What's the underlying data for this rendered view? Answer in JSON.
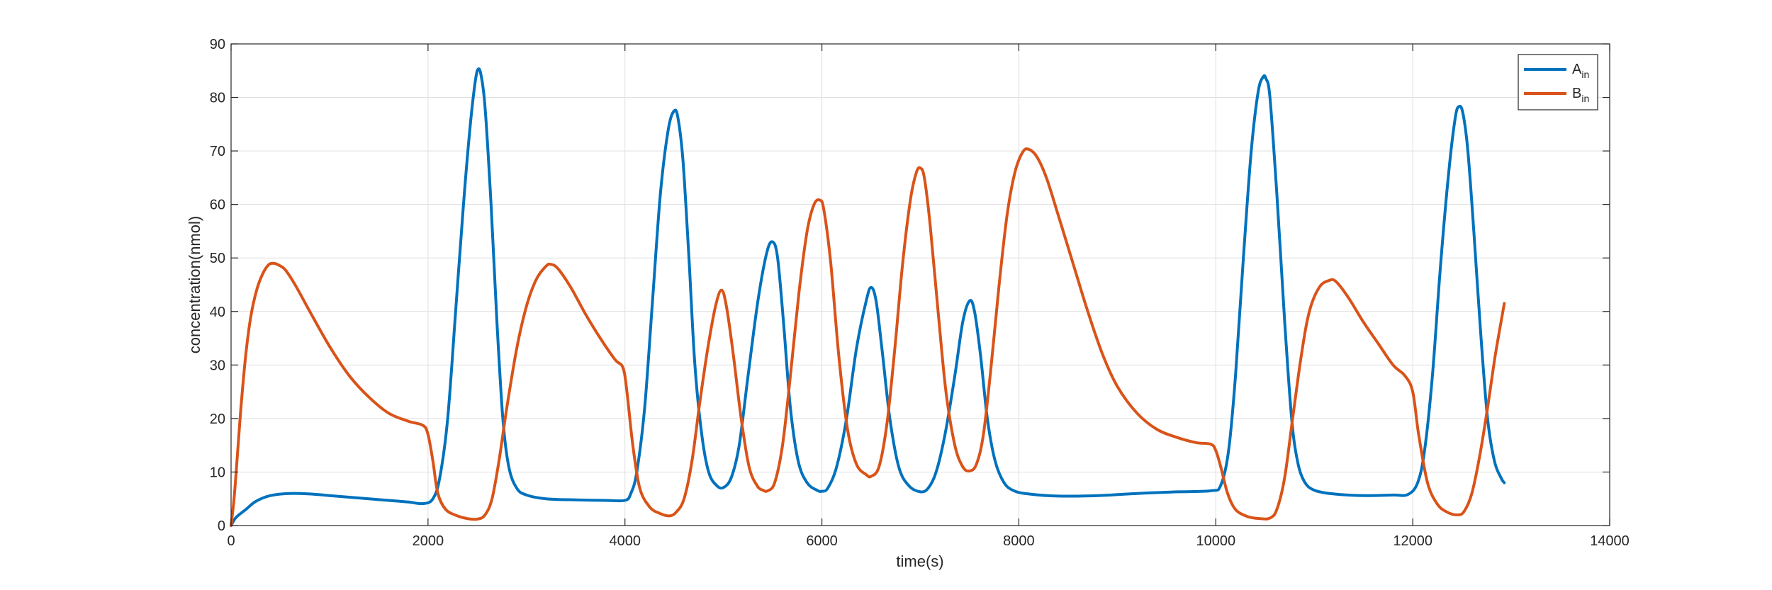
{
  "chart_data": {
    "type": "line",
    "title": "",
    "xlabel": "time(s)",
    "ylabel": "concentration(nmol)",
    "xlim": [
      0,
      14000
    ],
    "ylim": [
      0,
      90
    ],
    "xticks": [
      0,
      2000,
      4000,
      6000,
      8000,
      10000,
      12000,
      14000
    ],
    "yticks": [
      0,
      10,
      20,
      30,
      40,
      50,
      60,
      70,
      80,
      90
    ],
    "xtick_labels": [
      "0",
      "2000",
      "4000",
      "6000",
      "8000",
      "10000",
      "12000",
      "14000"
    ],
    "ytick_labels": [
      "0",
      "10",
      "20",
      "30",
      "40",
      "50",
      "60",
      "70",
      "80",
      "90"
    ],
    "grid": true,
    "legend_position": "top-right",
    "series": [
      {
        "name": "A",
        "name_subscript": "in",
        "color": "#0072BD",
        "points": [
          [
            0,
            0
          ],
          [
            50,
            1.5
          ],
          [
            150,
            3
          ],
          [
            250,
            4.5
          ],
          [
            400,
            5.6
          ],
          [
            600,
            6
          ],
          [
            800,
            5.9
          ],
          [
            1000,
            5.6
          ],
          [
            1200,
            5.3
          ],
          [
            1400,
            5
          ],
          [
            1600,
            4.7
          ],
          [
            1800,
            4.4
          ],
          [
            1950,
            4.1
          ],
          [
            2050,
            5
          ],
          [
            2120,
            9
          ],
          [
            2200,
            20
          ],
          [
            2280,
            40
          ],
          [
            2360,
            60
          ],
          [
            2430,
            75
          ],
          [
            2480,
            83
          ],
          [
            2510,
            85.3
          ],
          [
            2540,
            84
          ],
          [
            2580,
            78
          ],
          [
            2640,
            60
          ],
          [
            2700,
            38
          ],
          [
            2760,
            20
          ],
          [
            2820,
            11
          ],
          [
            2900,
            7
          ],
          [
            3000,
            5.7
          ],
          [
            3200,
            5
          ],
          [
            3500,
            4.8
          ],
          [
            3800,
            4.7
          ],
          [
            4000,
            4.7
          ],
          [
            4060,
            6
          ],
          [
            4120,
            10
          ],
          [
            4200,
            22
          ],
          [
            4280,
            42
          ],
          [
            4360,
            62
          ],
          [
            4440,
            74
          ],
          [
            4500,
            77.5
          ],
          [
            4540,
            76
          ],
          [
            4590,
            68
          ],
          [
            4650,
            50
          ],
          [
            4710,
            30
          ],
          [
            4780,
            17
          ],
          [
            4850,
            10
          ],
          [
            4930,
            7.5
          ],
          [
            5000,
            7.1
          ],
          [
            5080,
            9
          ],
          [
            5160,
            15
          ],
          [
            5250,
            28
          ],
          [
            5350,
            42
          ],
          [
            5440,
            51
          ],
          [
            5500,
            53
          ],
          [
            5550,
            50
          ],
          [
            5610,
            38
          ],
          [
            5680,
            22
          ],
          [
            5760,
            12
          ],
          [
            5850,
            8
          ],
          [
            5950,
            6.6
          ],
          [
            6000,
            6.4
          ],
          [
            6060,
            7
          ],
          [
            6150,
            11
          ],
          [
            6250,
            20
          ],
          [
            6350,
            33
          ],
          [
            6450,
            42
          ],
          [
            6500,
            44.5
          ],
          [
            6550,
            42
          ],
          [
            6610,
            33
          ],
          [
            6690,
            20
          ],
          [
            6780,
            11
          ],
          [
            6880,
            7.5
          ],
          [
            7000,
            6.3
          ],
          [
            7080,
            7
          ],
          [
            7160,
            10
          ],
          [
            7250,
            17
          ],
          [
            7350,
            28
          ],
          [
            7430,
            38
          ],
          [
            7500,
            42
          ],
          [
            7550,
            40
          ],
          [
            7610,
            32
          ],
          [
            7680,
            20
          ],
          [
            7760,
            12
          ],
          [
            7850,
            8
          ],
          [
            7950,
            6.5
          ],
          [
            8100,
            5.9
          ],
          [
            8400,
            5.5
          ],
          [
            8800,
            5.6
          ],
          [
            9200,
            6
          ],
          [
            9600,
            6.3
          ],
          [
            9950,
            6.5
          ],
          [
            10050,
            7.5
          ],
          [
            10130,
            14
          ],
          [
            10200,
            28
          ],
          [
            10280,
            50
          ],
          [
            10360,
            70
          ],
          [
            10430,
            81
          ],
          [
            10480,
            83.8
          ],
          [
            10510,
            83.5
          ],
          [
            10550,
            80
          ],
          [
            10620,
            62
          ],
          [
            10700,
            38
          ],
          [
            10770,
            20
          ],
          [
            10830,
            12
          ],
          [
            10900,
            8.2
          ],
          [
            11000,
            6.6
          ],
          [
            11200,
            5.9
          ],
          [
            11500,
            5.6
          ],
          [
            11800,
            5.7
          ],
          [
            11950,
            5.8
          ],
          [
            12050,
            8
          ],
          [
            12120,
            14
          ],
          [
            12200,
            28
          ],
          [
            12280,
            48
          ],
          [
            12360,
            65
          ],
          [
            12430,
            76
          ],
          [
            12470,
            78.3
          ],
          [
            12510,
            77
          ],
          [
            12560,
            70
          ],
          [
            12620,
            55
          ],
          [
            12690,
            36
          ],
          [
            12760,
            20
          ],
          [
            12830,
            12
          ],
          [
            12900,
            8.8
          ],
          [
            12930,
            8
          ]
        ]
      },
      {
        "name": "B",
        "name_subscript": "in",
        "color": "#D95319",
        "points": [
          [
            0,
            0
          ],
          [
            30,
            5
          ],
          [
            60,
            12
          ],
          [
            100,
            22
          ],
          [
            150,
            32
          ],
          [
            200,
            39
          ],
          [
            260,
            44
          ],
          [
            320,
            47
          ],
          [
            380,
            48.7
          ],
          [
            430,
            49
          ],
          [
            480,
            48.7
          ],
          [
            550,
            47.8
          ],
          [
            650,
            45
          ],
          [
            800,
            40
          ],
          [
            1000,
            33.5
          ],
          [
            1200,
            28
          ],
          [
            1400,
            24
          ],
          [
            1600,
            21
          ],
          [
            1800,
            19.5
          ],
          [
            1950,
            18.7
          ],
          [
            2000,
            17
          ],
          [
            2050,
            12
          ],
          [
            2100,
            6
          ],
          [
            2180,
            3
          ],
          [
            2300,
            1.8
          ],
          [
            2400,
            1.3
          ],
          [
            2500,
            1.2
          ],
          [
            2580,
            2
          ],
          [
            2650,
            5
          ],
          [
            2720,
            12
          ],
          [
            2800,
            22
          ],
          [
            2900,
            33
          ],
          [
            3000,
            41
          ],
          [
            3100,
            46
          ],
          [
            3200,
            48.5
          ],
          [
            3250,
            48.8
          ],
          [
            3320,
            48
          ],
          [
            3450,
            44.5
          ],
          [
            3600,
            39.5
          ],
          [
            3750,
            35
          ],
          [
            3900,
            31
          ],
          [
            3980,
            29.5
          ],
          [
            4020,
            25
          ],
          [
            4080,
            15
          ],
          [
            4150,
            7
          ],
          [
            4250,
            3.5
          ],
          [
            4350,
            2.3
          ],
          [
            4450,
            1.8
          ],
          [
            4520,
            2.5
          ],
          [
            4600,
            5
          ],
          [
            4680,
            12
          ],
          [
            4760,
            23
          ],
          [
            4840,
            33
          ],
          [
            4920,
            41
          ],
          [
            4980,
            44
          ],
          [
            5030,
            41
          ],
          [
            5100,
            32
          ],
          [
            5180,
            20
          ],
          [
            5260,
            11
          ],
          [
            5340,
            7.5
          ],
          [
            5400,
            6.6
          ],
          [
            5450,
            6.5
          ],
          [
            5520,
            8
          ],
          [
            5600,
            15
          ],
          [
            5680,
            28
          ],
          [
            5770,
            44
          ],
          [
            5850,
            55
          ],
          [
            5920,
            60
          ],
          [
            5980,
            60.8
          ],
          [
            6020,
            59
          ],
          [
            6090,
            49
          ],
          [
            6170,
            32
          ],
          [
            6260,
            18
          ],
          [
            6350,
            11.5
          ],
          [
            6450,
            9.5
          ],
          [
            6500,
            9.2
          ],
          [
            6580,
            11
          ],
          [
            6660,
            19
          ],
          [
            6740,
            33
          ],
          [
            6820,
            49
          ],
          [
            6900,
            61
          ],
          [
            6960,
            66
          ],
          [
            7000,
            66.8
          ],
          [
            7040,
            65
          ],
          [
            7100,
            56
          ],
          [
            7180,
            40
          ],
          [
            7260,
            25
          ],
          [
            7350,
            15
          ],
          [
            7430,
            11
          ],
          [
            7500,
            10.2
          ],
          [
            7570,
            11.5
          ],
          [
            7640,
            17
          ],
          [
            7720,
            30
          ],
          [
            7800,
            45
          ],
          [
            7880,
            58
          ],
          [
            7960,
            66
          ],
          [
            8040,
            69.8
          ],
          [
            8100,
            70.3
          ],
          [
            8180,
            69
          ],
          [
            8280,
            65
          ],
          [
            8400,
            58
          ],
          [
            8550,
            49
          ],
          [
            8700,
            40
          ],
          [
            8850,
            32
          ],
          [
            9000,
            26
          ],
          [
            9200,
            21
          ],
          [
            9400,
            18
          ],
          [
            9600,
            16.5
          ],
          [
            9800,
            15.5
          ],
          [
            9950,
            15.2
          ],
          [
            10000,
            14
          ],
          [
            10050,
            11
          ],
          [
            10120,
            6
          ],
          [
            10200,
            3
          ],
          [
            10320,
            1.7
          ],
          [
            10450,
            1.3
          ],
          [
            10550,
            1.4
          ],
          [
            10620,
            3
          ],
          [
            10700,
            9
          ],
          [
            10780,
            20
          ],
          [
            10870,
            32
          ],
          [
            10950,
            40
          ],
          [
            11050,
            44.5
          ],
          [
            11150,
            45.8
          ],
          [
            11220,
            45.6
          ],
          [
            11350,
            42.5
          ],
          [
            11500,
            38
          ],
          [
            11650,
            34
          ],
          [
            11800,
            30
          ],
          [
            11920,
            28
          ],
          [
            12000,
            25
          ],
          [
            12060,
            17
          ],
          [
            12150,
            8
          ],
          [
            12250,
            4
          ],
          [
            12350,
            2.5
          ],
          [
            12450,
            2
          ],
          [
            12520,
            2.6
          ],
          [
            12600,
            6
          ],
          [
            12680,
            13
          ],
          [
            12760,
            22
          ],
          [
            12840,
            32
          ],
          [
            12930,
            41.5
          ]
        ]
      }
    ]
  }
}
